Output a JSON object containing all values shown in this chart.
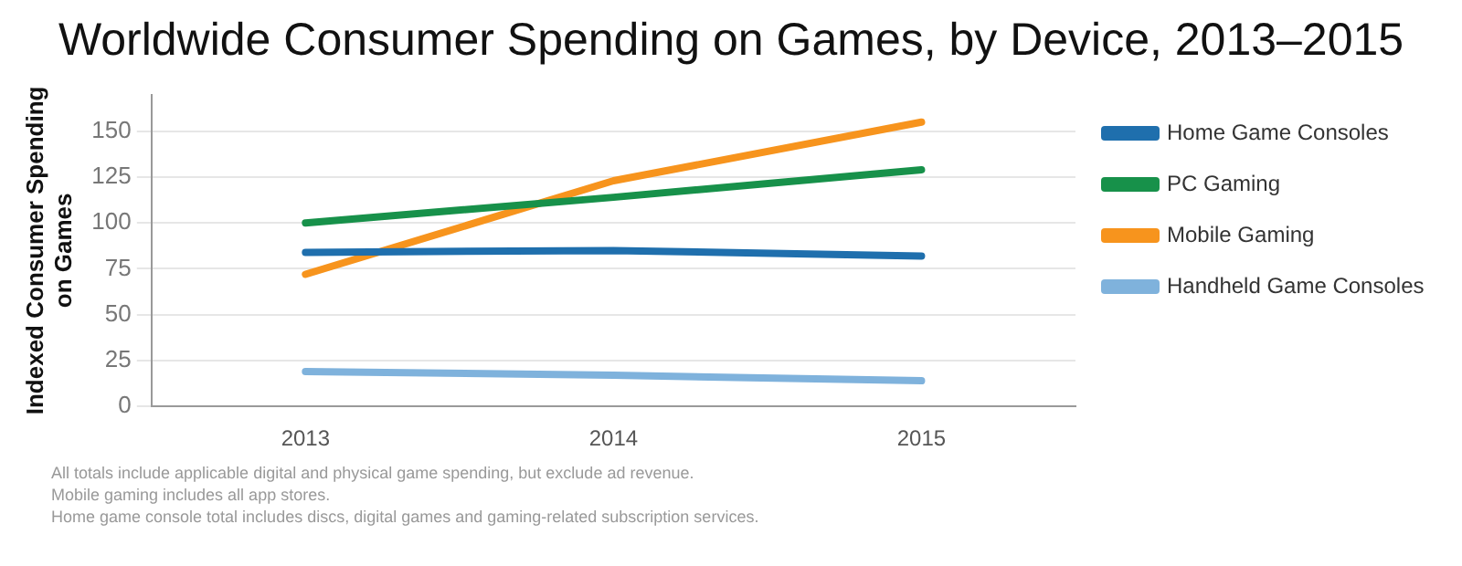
{
  "chart_data": {
    "type": "line",
    "title": "Worldwide Consumer Spending on Games, by Device, 2013–2015",
    "ylabel": "Indexed Consumer Spending on Games",
    "categories": [
      "2013",
      "2014",
      "2015"
    ],
    "series": [
      {
        "name": "Home Game Consoles",
        "color": "#1f6fad",
        "values": [
          84,
          85,
          82
        ]
      },
      {
        "name": "PC Gaming",
        "color": "#17914a",
        "values": [
          100,
          114,
          129
        ]
      },
      {
        "name": "Mobile Gaming",
        "color": "#f7941d",
        "values": [
          72,
          123,
          155
        ]
      },
      {
        "name": "Handheld Game Consoles",
        "color": "#7fb2dc",
        "values": [
          19,
          17,
          14
        ]
      }
    ],
    "ylim": [
      0,
      170
    ],
    "yticks": [
      0,
      25,
      50,
      75,
      100,
      125,
      150
    ],
    "grid": "y",
    "legend": "right",
    "marker": "none",
    "line_style": "solid",
    "annotations": [
      "All totals include applicable digital and physical game spending, but exclude ad revenue.",
      "Mobile gaming includes all app stores.",
      "Home game console total includes discs, digital games and gaming-related subscription services."
    ]
  }
}
